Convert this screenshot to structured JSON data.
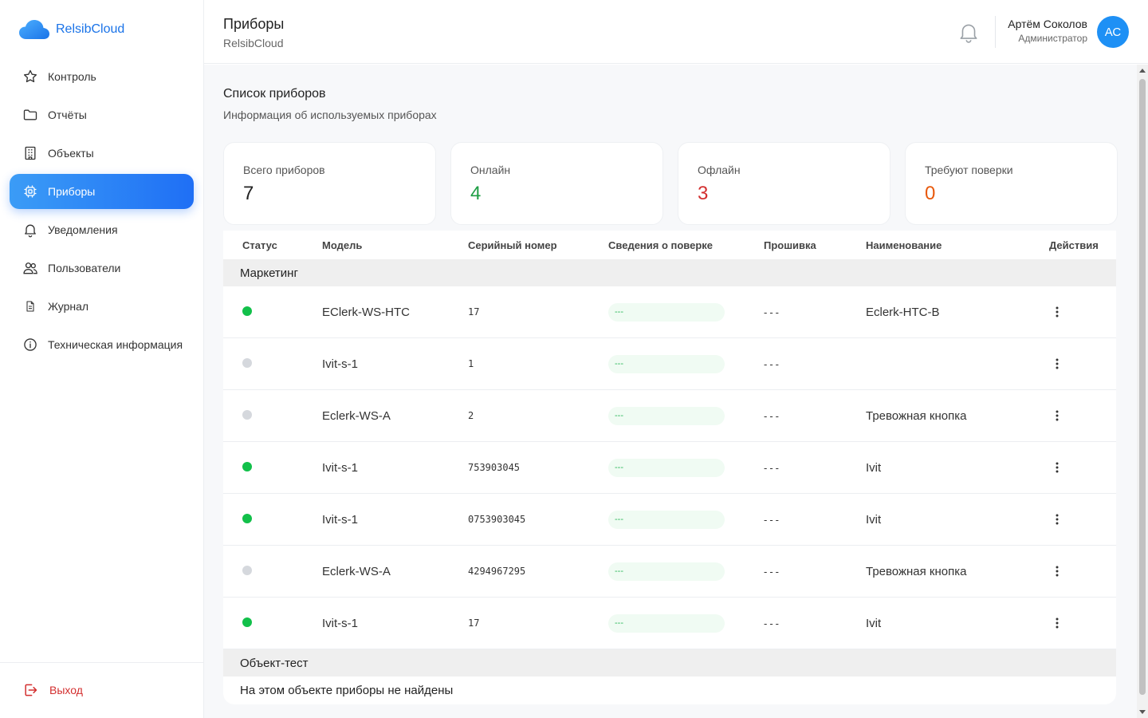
{
  "brand": {
    "name": "RelsibCloud"
  },
  "sidebar": {
    "items": [
      {
        "label": "Контроль",
        "icon": "star-icon"
      },
      {
        "label": "Отчёты",
        "icon": "folder-icon"
      },
      {
        "label": "Объекты",
        "icon": "building-icon"
      },
      {
        "label": "Приборы",
        "icon": "chip-icon",
        "active": true
      },
      {
        "label": "Уведомления",
        "icon": "bell-icon"
      },
      {
        "label": "Пользователи",
        "icon": "users-icon"
      },
      {
        "label": "Журнал",
        "icon": "document-icon"
      },
      {
        "label": "Техническая информация",
        "icon": "info-icon"
      }
    ],
    "logout_label": "Выход"
  },
  "header": {
    "title": "Приборы",
    "subtitle": "RelsibCloud",
    "user_name": "Артём Соколов",
    "user_role": "Администратор",
    "avatar_initials": "АС"
  },
  "main": {
    "title": "Список приборов",
    "subtitle": "Информация об используемых приборах",
    "stats": [
      {
        "label": "Всего приборов",
        "value": "7",
        "color": "#222222"
      },
      {
        "label": "Онлайн",
        "value": "4",
        "color": "#1e9e44"
      },
      {
        "label": "Офлайн",
        "value": "3",
        "color": "#d32f2f"
      },
      {
        "label": "Требуют поверки",
        "value": "0",
        "color": "#e8590c"
      }
    ],
    "table": {
      "columns": [
        "Статус",
        "Модель",
        "Серийный номер",
        "Сведения о поверке",
        "Прошивка",
        "Наименование",
        "Действия"
      ],
      "groups": [
        {
          "name": "Маркетинг",
          "rows": [
            {
              "status": "online",
              "model": "EClerk-WS-HTC",
              "serial": "17",
              "verification": "---",
              "firmware": "---",
              "name": "Eclerk-HTC-B"
            },
            {
              "status": "offline",
              "model": "Ivit-s-1",
              "serial": "1",
              "verification": "---",
              "firmware": "---",
              "name": ""
            },
            {
              "status": "offline",
              "model": "Eclerk-WS-A",
              "serial": "2",
              "verification": "---",
              "firmware": "---",
              "name": "Тревожная кнопка"
            },
            {
              "status": "online",
              "model": "Ivit-s-1",
              "serial": "753903045",
              "verification": "---",
              "firmware": "---",
              "name": "Ivit"
            },
            {
              "status": "online",
              "model": "Ivit-s-1",
              "serial": "0753903045",
              "verification": "---",
              "firmware": "---",
              "name": "Ivit"
            },
            {
              "status": "offline",
              "model": "Eclerk-WS-A",
              "serial": "4294967295",
              "verification": "---",
              "firmware": "---",
              "name": "Тревожная кнопка"
            },
            {
              "status": "online",
              "model": "Ivit-s-1",
              "serial": "17",
              "verification": "---",
              "firmware": "---",
              "name": "Ivit"
            }
          ]
        },
        {
          "name": "Объект-тест",
          "rows": [],
          "empty_message": "На этом объекте приборы не найдены"
        }
      ]
    }
  },
  "colors": {
    "accent": "#1f6ff5",
    "online": "#12c04a",
    "offline": "#d5d8dd",
    "danger": "#d32f2f"
  }
}
